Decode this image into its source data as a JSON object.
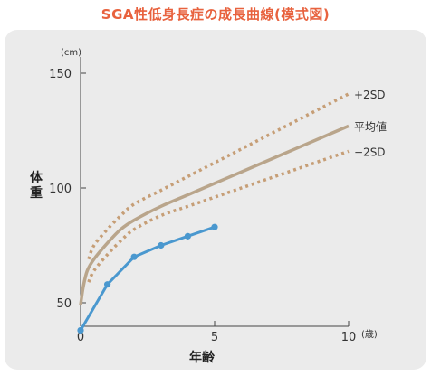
{
  "title": "SGA性低身長症の成長曲線(模式図)",
  "chart_data": {
    "type": "line",
    "xlabel": "年齢",
    "ylabel": "体重",
    "x_unit": "(歳)",
    "y_unit": "(cm)",
    "xlim": [
      0,
      10
    ],
    "ylim": [
      45,
      150
    ],
    "xticks": [
      "0",
      "5",
      "10"
    ],
    "yticks": [
      "50",
      "100",
      "150"
    ],
    "series": [
      {
        "name": "+2SD",
        "style": "dotted",
        "color": "#c69e76",
        "x": [
          0.3,
          0.5,
          1,
          1.5,
          2,
          3,
          4,
          5,
          6,
          7,
          8,
          9,
          10
        ],
        "y": [
          69,
          75,
          82,
          88,
          93,
          99,
          105,
          111,
          117,
          123,
          129,
          135,
          141
        ]
      },
      {
        "name": "平均値",
        "style": "solid",
        "color": "#b9a58b",
        "x": [
          0,
          0.1,
          0.25,
          0.5,
          1,
          1.5,
          2,
          3,
          4,
          5,
          6,
          7,
          8,
          9,
          10
        ],
        "y": [
          49,
          57,
          64,
          69,
          76,
          82,
          86,
          92,
          97,
          102,
          107,
          112,
          117,
          122,
          127
        ]
      },
      {
        "name": "−2SD",
        "style": "dotted",
        "color": "#c69e76",
        "x": [
          0.3,
          0.5,
          1,
          1.5,
          2,
          3,
          4,
          5,
          6,
          7,
          8,
          9,
          10
        ],
        "y": [
          59,
          64,
          71,
          77,
          82,
          88,
          92,
          96,
          100,
          104,
          108,
          112,
          116
        ]
      },
      {
        "name": "",
        "style": "solid-markers",
        "color": "#4a98cf",
        "x": [
          0,
          1,
          2,
          3,
          4,
          5
        ],
        "y": [
          38,
          58,
          70,
          75,
          79,
          83
        ]
      }
    ]
  }
}
